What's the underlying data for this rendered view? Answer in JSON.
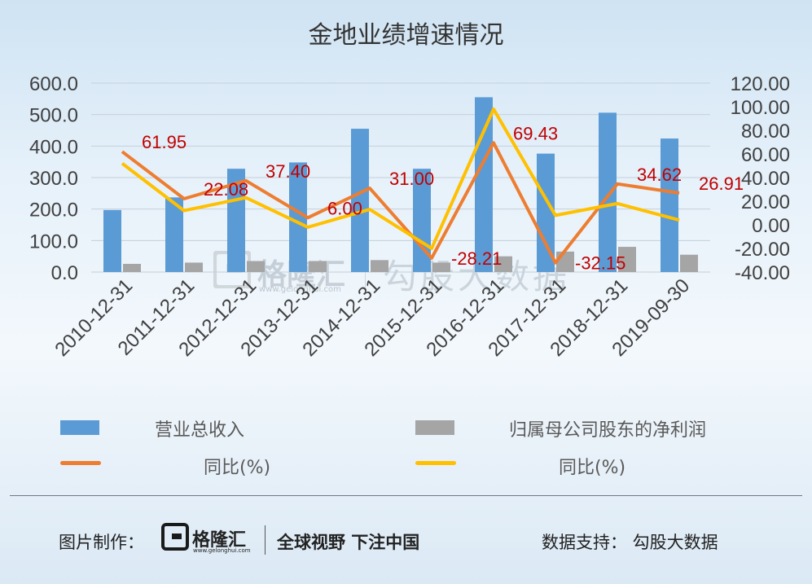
{
  "title": "金地业绩增速情况",
  "legend": {
    "revenue": "营业总收入",
    "net_profit": "归属母公司股东的净利润",
    "revenue_yoy": "同比(%)",
    "profit_yoy": "同比(%)"
  },
  "footer": {
    "made_by": "图片制作：",
    "brand_name": "格隆汇",
    "brand_url": "www.gelonghui.com",
    "slogan": "全球视野 下注中国",
    "data_support": "数据支持：  勾股大数据"
  },
  "watermark": {
    "brand_name": "格隆汇",
    "brand_url": "www.gelonghui.com",
    "partner": "勾股大数据"
  },
  "colors": {
    "revenue": "#5b9bd5",
    "net_profit": "#a5a5a5",
    "revenue_yoy": "#ed7d31",
    "profit_yoy": "#ffc000",
    "data_label": "#c00000"
  },
  "chart_data": {
    "type": "bar",
    "categories": [
      "2010-12-31",
      "2011-12-31",
      "2012-12-31",
      "2013-12-31",
      "2014-12-31",
      "2015-12-31",
      "2016-12-31",
      "2017-12-31",
      "2018-12-31",
      "2019-09-30"
    ],
    "series": [
      {
        "name": "营业总收入",
        "type": "bar",
        "axis": "left",
        "values": [
          197,
          237,
          328,
          348,
          455,
          328,
          555,
          376,
          506,
          424
        ]
      },
      {
        "name": "归属母公司股东的净利润",
        "type": "bar",
        "axis": "left",
        "values": [
          26,
          30,
          35,
          35,
          38,
          30,
          50,
          65,
          80,
          55
        ]
      },
      {
        "name": "同比(%)",
        "type": "line",
        "axis": "right",
        "values": [
          61.95,
          22.08,
          37.4,
          6.0,
          31.0,
          -28.21,
          69.43,
          -32.15,
          34.62,
          26.91
        ]
      },
      {
        "name": "同比(%)",
        "type": "line",
        "axis": "right",
        "values": [
          52,
          12,
          23,
          -2,
          13,
          -20,
          98,
          8,
          18,
          4
        ]
      }
    ],
    "data_labels": [
      "61.95",
      "22.08",
      "37.40",
      "6.00",
      "31.00",
      "-28.21",
      "69.43",
      "-32.15",
      "34.62",
      "26.91"
    ],
    "left_axis": {
      "ylim": [
        0,
        600
      ],
      "ticks": [
        "600.0",
        "500.0",
        "400.0",
        "300.0",
        "200.0",
        "100.0",
        "0.0"
      ]
    },
    "right_axis": {
      "ylim": [
        -40,
        120
      ],
      "ticks": [
        "120.00",
        "100.00",
        "80.00",
        "60.00",
        "40.00",
        "20.00",
        "0.00",
        "-20.00",
        "-40.00"
      ]
    },
    "grid": true,
    "legend_position": "bottom"
  }
}
